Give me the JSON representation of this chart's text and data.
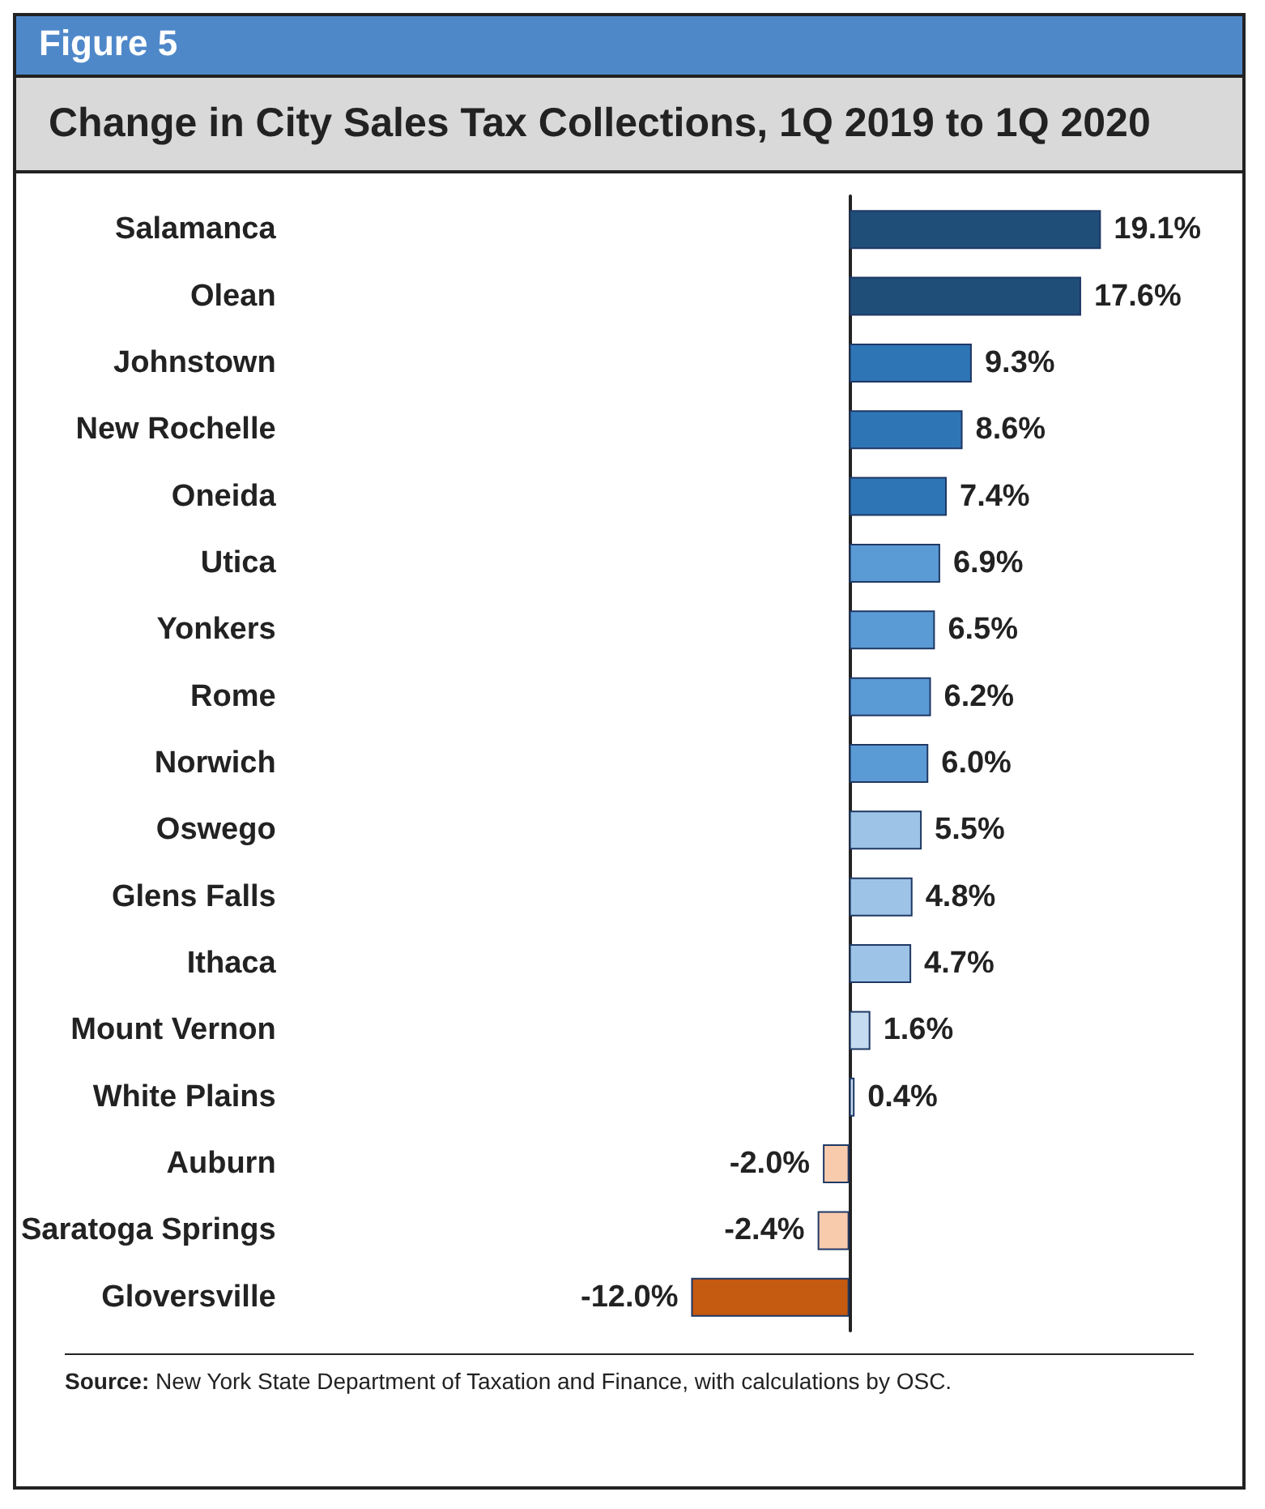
{
  "chart_data": {
    "type": "bar",
    "orientation": "horizontal",
    "title": "Change in City Sales Tax Collections, 1Q 2019 to 1Q 2020",
    "annotations": [
      "Figure 5",
      "Source: New York State Department of Taxation and Finance, with calculations by OSC."
    ],
    "categories": [
      "Salamanca",
      "Olean",
      "Johnstown",
      "New Rochelle",
      "Oneida",
      "Utica",
      "Yonkers",
      "Rome",
      "Norwich",
      "Oswego",
      "Glens Falls",
      "Ithaca",
      "Mount Vernon",
      "White Plains",
      "Auburn",
      "Saratoga Springs",
      "Gloversville"
    ],
    "values": [
      19.1,
      17.6,
      9.3,
      8.6,
      7.4,
      6.9,
      6.5,
      6.2,
      6.0,
      5.5,
      4.8,
      4.7,
      1.6,
      0.4,
      -2.0,
      -2.4,
      -12.0
    ],
    "value_labels": [
      "19.1%",
      "17.6%",
      "9.3%",
      "8.6%",
      "7.4%",
      "6.9%",
      "6.5%",
      "6.2%",
      "6.0%",
      "5.5%",
      "4.8%",
      "4.7%",
      "1.6%",
      "0.4%",
      "-2.0%",
      "-2.4%",
      "-12.0%"
    ],
    "colors": [
      "#1f4e79",
      "#1f4e79",
      "#2e75b6",
      "#2e75b6",
      "#2e75b6",
      "#5b9bd5",
      "#5b9bd5",
      "#5b9bd5",
      "#5b9bd5",
      "#9dc3e6",
      "#9dc3e6",
      "#9dc3e6",
      "#c5dcf0",
      "#c5dcf0",
      "#f8cbad",
      "#f8cbad",
      "#c55a11"
    ],
    "tick_labels": "y"
  }
}
